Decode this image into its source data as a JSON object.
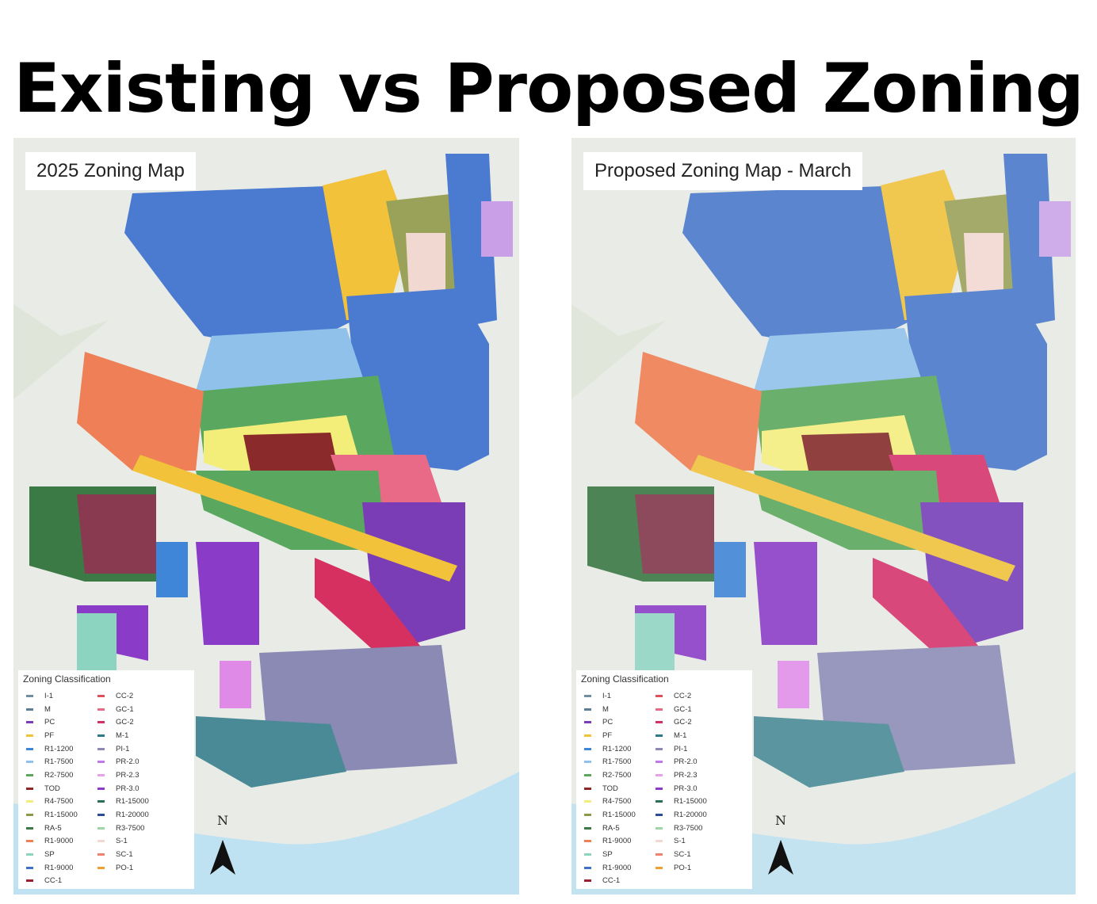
{
  "title": "Existing vs Proposed Zoning",
  "maps": {
    "left": {
      "title": "2025 Zoning Map"
    },
    "right": {
      "title": "Proposed Zoning Map - March"
    }
  },
  "legend": {
    "title": "Zoning Classification",
    "column1": [
      {
        "label": "I-1",
        "color": "#6f8fa0"
      },
      {
        "label": "M",
        "color": "#5d7f95"
      },
      {
        "label": "PC",
        "color": "#7a3db5"
      },
      {
        "label": "PF",
        "color": "#f2c23a"
      },
      {
        "label": "R1-1200",
        "color": "#3f86d8"
      },
      {
        "label": "R1-7500",
        "color": "#8fc1ea"
      },
      {
        "label": "R2-7500",
        "color": "#5aa860"
      },
      {
        "label": "TOD",
        "color": "#8a2a2a"
      },
      {
        "label": "R4-7500",
        "color": "#f3ee7a"
      },
      {
        "label": "R1-15000",
        "color": "#8a9a48"
      },
      {
        "label": "RA-5",
        "color": "#3c7a45"
      },
      {
        "label": "R1-9000",
        "color": "#ee7f56"
      },
      {
        "label": "SP",
        "color": "#8cd3c0"
      },
      {
        "label": "R1-9000",
        "color": "#3f6fc6"
      },
      {
        "label": "CC-1",
        "color": "#9a1f2e"
      }
    ],
    "column2": [
      {
        "label": "CC-2",
        "color": "#e0505a"
      },
      {
        "label": "GC-1",
        "color": "#e86a86"
      },
      {
        "label": "GC-2",
        "color": "#d63060"
      },
      {
        "label": "M-1",
        "color": "#2e7a86"
      },
      {
        "label": "PI-1",
        "color": "#8a8ab5"
      },
      {
        "label": "PR-2.0",
        "color": "#c07ae8"
      },
      {
        "label": "PR-2.3",
        "color": "#e8a0e8"
      },
      {
        "label": "PR-3.0",
        "color": "#8a3cc8"
      },
      {
        "label": "R1-15000",
        "color": "#2a6e55"
      },
      {
        "label": "R1-20000",
        "color": "#2a4a9a"
      },
      {
        "label": "R3-7500",
        "color": "#9ed6a8"
      },
      {
        "label": "S-1",
        "color": "#f1d8d0"
      },
      {
        "label": "SC-1",
        "color": "#f08070"
      },
      {
        "label": "PO-1",
        "color": "#f0a030"
      }
    ]
  },
  "north_label": "N"
}
